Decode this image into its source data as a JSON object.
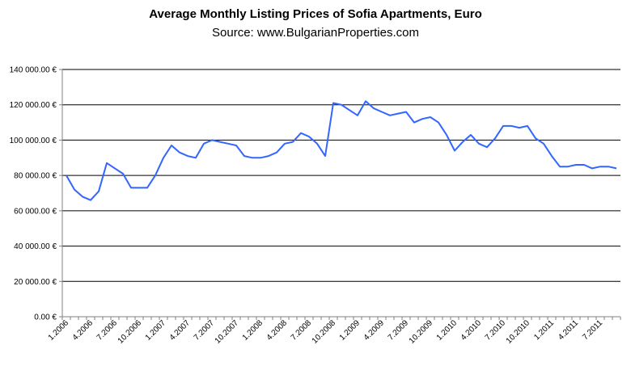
{
  "chart_data": {
    "type": "line",
    "title": "Average Monthly Listing Prices of Sofia Apartments, Euro",
    "subtitle": "Source: www.BulgarianProperties.com",
    "xlabel": "",
    "ylabel": "",
    "ylim": [
      0,
      140000
    ],
    "y_ticks": [
      {
        "value": 0,
        "label": "0.00 €"
      },
      {
        "value": 20000,
        "label": "20 000.00 €"
      },
      {
        "value": 40000,
        "label": "40 000.00 €"
      },
      {
        "value": 60000,
        "label": "60 000.00 €"
      },
      {
        "value": 80000,
        "label": "80 000.00 €"
      },
      {
        "value": 100000,
        "label": "100 000.00 €"
      },
      {
        "value": 120000,
        "label": "120 000.00 €"
      },
      {
        "value": 140000,
        "label": "140 000.00 €"
      }
    ],
    "x_tick_labels": [
      {
        "index": 0,
        "label": "1.2006"
      },
      {
        "index": 3,
        "label": "4.2006"
      },
      {
        "index": 6,
        "label": "7.2006"
      },
      {
        "index": 9,
        "label": "10.2006"
      },
      {
        "index": 12,
        "label": "1.2007"
      },
      {
        "index": 15,
        "label": "4.2007"
      },
      {
        "index": 18,
        "label": "7.2007"
      },
      {
        "index": 21,
        "label": "10.2007"
      },
      {
        "index": 24,
        "label": "1.2008"
      },
      {
        "index": 27,
        "label": "4.2008"
      },
      {
        "index": 30,
        "label": "7.2008"
      },
      {
        "index": 33,
        "label": "10.2008"
      },
      {
        "index": 36,
        "label": "1.2009"
      },
      {
        "index": 39,
        "label": "4.2009"
      },
      {
        "index": 42,
        "label": "7.2009"
      },
      {
        "index": 45,
        "label": "10.2009"
      },
      {
        "index": 48,
        "label": "1.2010"
      },
      {
        "index": 51,
        "label": "4.2010"
      },
      {
        "index": 54,
        "label": "7.2010"
      },
      {
        "index": 57,
        "label": "10.2010"
      },
      {
        "index": 60,
        "label": "1.2011"
      },
      {
        "index": 63,
        "label": "4.2011"
      },
      {
        "index": 66,
        "label": "7.2011"
      }
    ],
    "grid": true,
    "legend": "none",
    "colors": {
      "line": "#3366ff",
      "grid": "#000000",
      "axis": "#808080"
    },
    "series": [
      {
        "values": [
          80000,
          72000,
          68000,
          66000,
          71000,
          87000,
          84000,
          81000,
          73000,
          73000,
          73000,
          80000,
          90000,
          97000,
          93000,
          91000,
          90000,
          98000,
          100000,
          99000,
          98000,
          97000,
          91000,
          90000,
          90000,
          91000,
          93000,
          98000,
          99000,
          104000,
          102000,
          98000,
          91000,
          121000,
          120000,
          117000,
          114000,
          122000,
          118000,
          116000,
          114000,
          115000,
          116000,
          110000,
          112000,
          113000,
          110000,
          103000,
          94000,
          99000,
          103000,
          98000,
          96000,
          101000,
          108000,
          108000,
          107000,
          108000,
          101000,
          98000,
          91000,
          85000,
          85000,
          86000,
          86000,
          84000,
          85000,
          85000,
          84000
        ]
      }
    ]
  }
}
